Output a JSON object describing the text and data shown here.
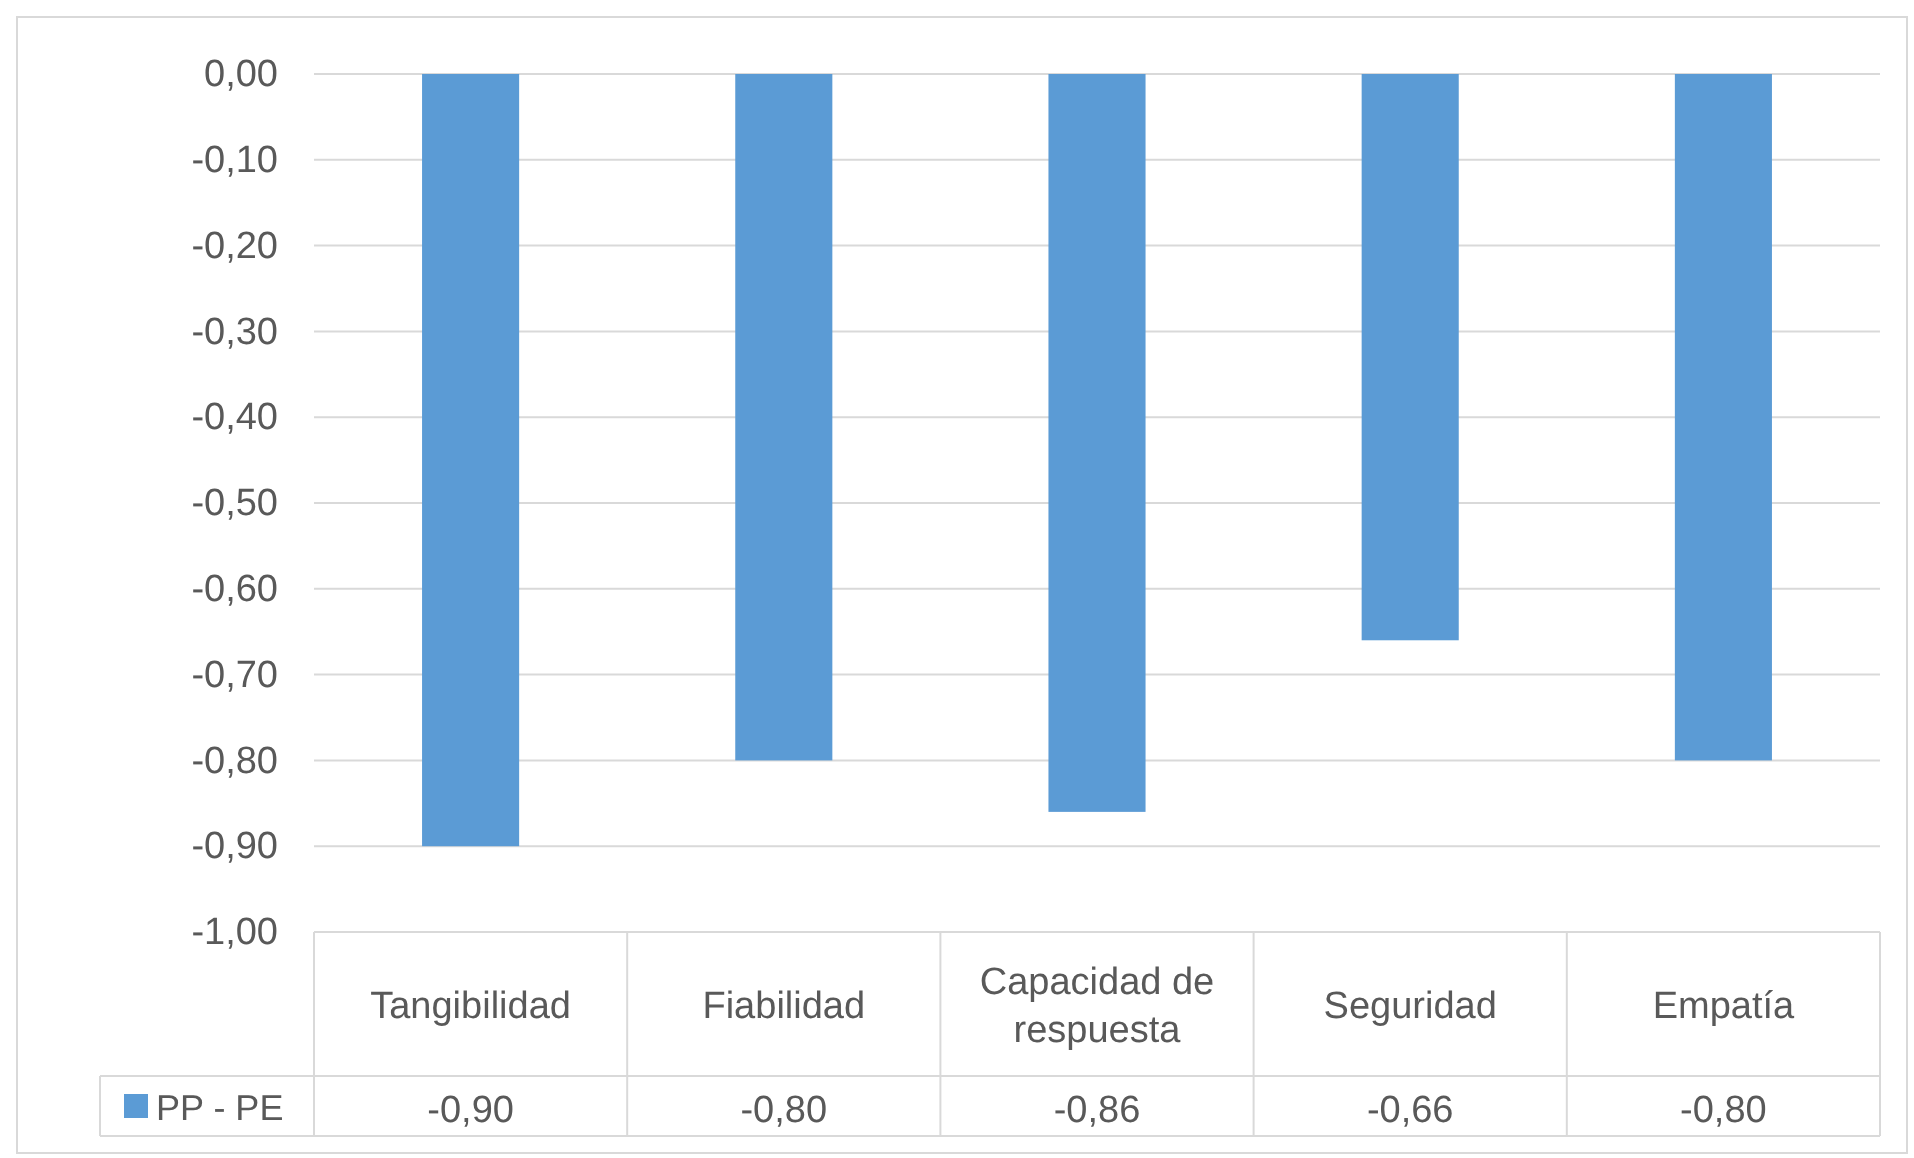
{
  "chart_data": {
    "type": "bar",
    "categories": [
      "Tangibilidad",
      "Fiabilidad",
      "Capacidad de respuesta",
      "Seguridad",
      "Empatía"
    ],
    "series": [
      {
        "name": "PP - PE",
        "color": "#5b9bd5",
        "values": [
          -0.9,
          -0.8,
          -0.86,
          -0.66,
          -0.8
        ],
        "value_labels": [
          "-0,90",
          "-0,80",
          "-0,86",
          "-0,66",
          "-0,80"
        ]
      }
    ],
    "ylim": [
      -1,
      0
    ],
    "yticks": [
      {
        "value": 0,
        "label": "0,00"
      },
      {
        "value": -0.1,
        "label": "-0,10"
      },
      {
        "value": -0.2,
        "label": "-0,20"
      },
      {
        "value": -0.3,
        "label": "-0,30"
      },
      {
        "value": -0.4,
        "label": "-0,40"
      },
      {
        "value": -0.5,
        "label": "-0,50"
      },
      {
        "value": -0.6,
        "label": "-0,60"
      },
      {
        "value": -0.7,
        "label": "-0,70"
      },
      {
        "value": -0.8,
        "label": "-0,80"
      },
      {
        "value": -0.9,
        "label": "-0,90"
      },
      {
        "value": -1,
        "label": "-1,00"
      }
    ],
    "grid": "y",
    "legend": "bottom"
  }
}
